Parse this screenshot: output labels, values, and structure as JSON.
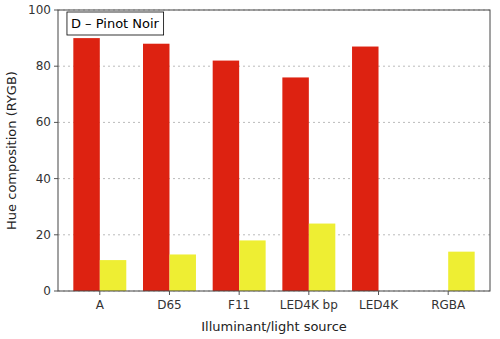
{
  "chart_data": {
    "type": "bar",
    "title": "D – Pinot Noir",
    "xlabel": "Illuminant/light source",
    "ylabel": "Hue composition (RYGB)",
    "categories": [
      "A",
      "D65",
      "F11",
      "LED4K bp",
      "LED4K",
      "RGBA"
    ],
    "series": [
      {
        "color": "#DD2211",
        "values": [
          90,
          88,
          82,
          76,
          87,
          0
        ]
      },
      {
        "color": "#EEEE33",
        "values": [
          11,
          13,
          18,
          24,
          0,
          14
        ]
      }
    ],
    "ylim": [
      0,
      100
    ],
    "yticks": [
      0,
      20,
      40,
      60,
      80,
      100
    ],
    "grid": true
  }
}
